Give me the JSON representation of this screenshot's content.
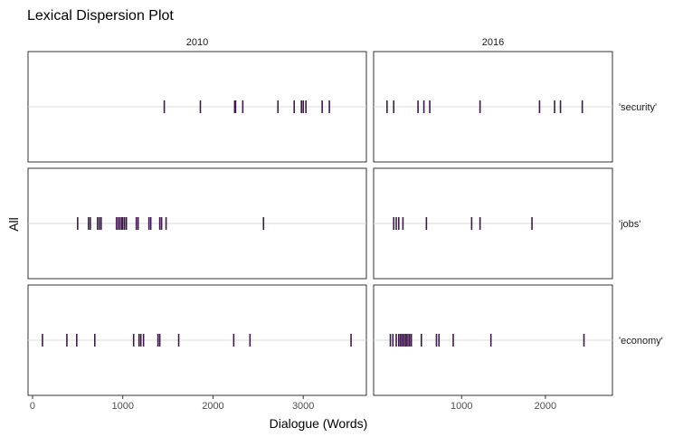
{
  "chart_data": {
    "type": "scatter",
    "title": "Lexical Dispersion Plot",
    "xlabel": "Dialogue (Words)",
    "ylabel": "All",
    "facet_columns": [
      "2010",
      "2016"
    ],
    "terms": [
      "'security'",
      "'jobs'",
      "'economy'"
    ],
    "panels": [
      {
        "column": "2010",
        "xlim": [
          -50,
          3700
        ],
        "ticks": [
          0,
          1000,
          2000,
          3000
        ],
        "tick_labels": [
          "0",
          "1000",
          "2000",
          "3000"
        ],
        "series": [
          {
            "term": "'security'",
            "x": [
              1460,
              1860,
              2240,
              2250,
              2330,
              2720,
              2900,
              2980,
              3000,
              3030,
              3210,
              3290
            ]
          },
          {
            "term": "'jobs'",
            "x": [
              500,
              620,
              640,
              720,
              740,
              760,
              930,
              950,
              970,
              990,
              1000,
              1020,
              1040,
              1150,
              1170,
              1290,
              1310,
              1410,
              1430,
              1480,
              2560
            ]
          },
          {
            "term": "'economy'",
            "x": [
              110,
              380,
              490,
              690,
              1120,
              1180,
              1200,
              1230,
              1390,
              1410,
              1620,
              2230,
              2410,
              3530
            ]
          }
        ]
      },
      {
        "column": "2016",
        "xlim": [
          -50,
          2800
        ],
        "ticks": [
          1000,
          2000
        ],
        "tick_labels": [
          "1000",
          "2000"
        ],
        "series": [
          {
            "term": "'security'",
            "x": [
              110,
              190,
              480,
              550,
              620,
              1220,
              1930,
              2110,
              2180,
              2440
            ]
          },
          {
            "term": "'jobs'",
            "x": [
              190,
              220,
              250,
              300,
              580,
              1120,
              1220,
              1840
            ]
          },
          {
            "term": "'economy'",
            "x": [
              150,
              180,
              220,
              250,
              270,
              290,
              310,
              330,
              340,
              360,
              380,
              400,
              520,
              700,
              730,
              900,
              1350,
              2460
            ]
          }
        ]
      }
    ],
    "mark_color": "#3d1a4a",
    "grid": "horizontal",
    "legend": "none"
  }
}
